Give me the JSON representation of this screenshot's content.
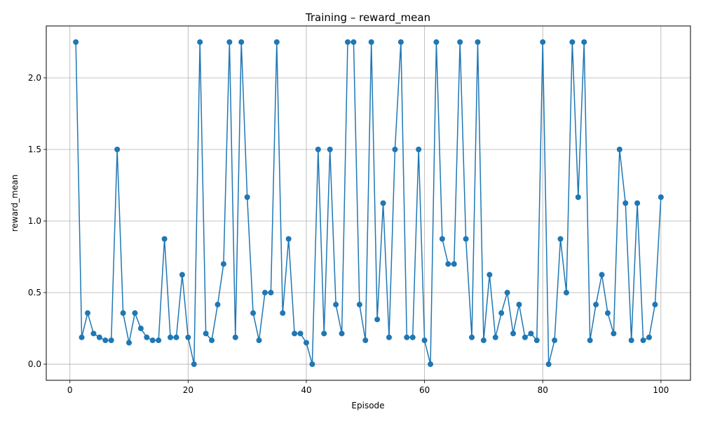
{
  "chart_data": {
    "type": "line",
    "title": "Training – reward_mean",
    "xlabel": "Episode",
    "ylabel": "reward_mean",
    "xlim": [
      -4.0,
      105.0
    ],
    "ylim": [
      -0.1125,
      2.3625
    ],
    "xticks": [
      0,
      20,
      40,
      60,
      80,
      100
    ],
    "yticks": [
      0.0,
      0.5,
      1.0,
      1.5,
      2.0
    ],
    "xtick_labels": [
      "0",
      "20",
      "40",
      "60",
      "80",
      "100"
    ],
    "ytick_labels": [
      "0.0",
      "0.5",
      "1.0",
      "1.5",
      "2.0"
    ],
    "grid": true,
    "marker": "circle",
    "color": "#1f77b4",
    "x": [
      1,
      2,
      3,
      4,
      5,
      6,
      7,
      8,
      9,
      10,
      11,
      12,
      13,
      14,
      15,
      16,
      17,
      18,
      19,
      20,
      21,
      22,
      23,
      24,
      25,
      26,
      27,
      28,
      29,
      30,
      31,
      32,
      33,
      34,
      35,
      36,
      37,
      38,
      39,
      40,
      41,
      42,
      43,
      44,
      45,
      46,
      47,
      48,
      49,
      50,
      51,
      52,
      53,
      54,
      55,
      56,
      57,
      58,
      59,
      60,
      61,
      62,
      63,
      64,
      65,
      66,
      67,
      68,
      69,
      70,
      71,
      72,
      73,
      74,
      75,
      76,
      77,
      78,
      79,
      80,
      81,
      82,
      83,
      84,
      85,
      86,
      87,
      88,
      89,
      90,
      91,
      92,
      93,
      94,
      95,
      96,
      97,
      98,
      99,
      100
    ],
    "y": [
      2.25,
      0.1875,
      0.3571,
      0.2143,
      0.1875,
      0.1667,
      0.1667,
      1.5,
      0.3571,
      0.15,
      0.3571,
      0.25,
      0.1875,
      0.1667,
      0.1667,
      0.875,
      0.1875,
      0.1875,
      0.625,
      0.1875,
      0.0,
      2.25,
      0.2143,
      0.1667,
      0.4167,
      0.7,
      2.25,
      0.1875,
      2.25,
      1.1667,
      0.3571,
      0.1667,
      0.5,
      0.5,
      2.25,
      0.3571,
      0.875,
      0.2143,
      0.2143,
      0.15,
      0.0,
      1.5,
      0.2143,
      1.5,
      0.4167,
      0.2143,
      2.25,
      2.25,
      0.4167,
      0.1667,
      2.25,
      0.3125,
      1.125,
      0.1875,
      1.5,
      2.25,
      0.1875,
      0.1875,
      1.5,
      0.1667,
      0.0,
      2.25,
      0.875,
      0.7,
      0.7,
      2.25,
      0.875,
      0.1875,
      2.25,
      0.1667,
      0.625,
      0.1875,
      0.3571,
      0.5,
      0.2143,
      0.4167,
      0.1875,
      0.2143,
      0.1667,
      2.25,
      0.0,
      0.1667,
      0.875,
      0.5,
      2.25,
      1.1667,
      2.25,
      0.1667,
      0.4167,
      0.625,
      0.3571,
      0.2143,
      1.5,
      1.125,
      0.1667,
      1.125,
      0.1667,
      0.1875,
      0.4167,
      1.1667
    ]
  }
}
